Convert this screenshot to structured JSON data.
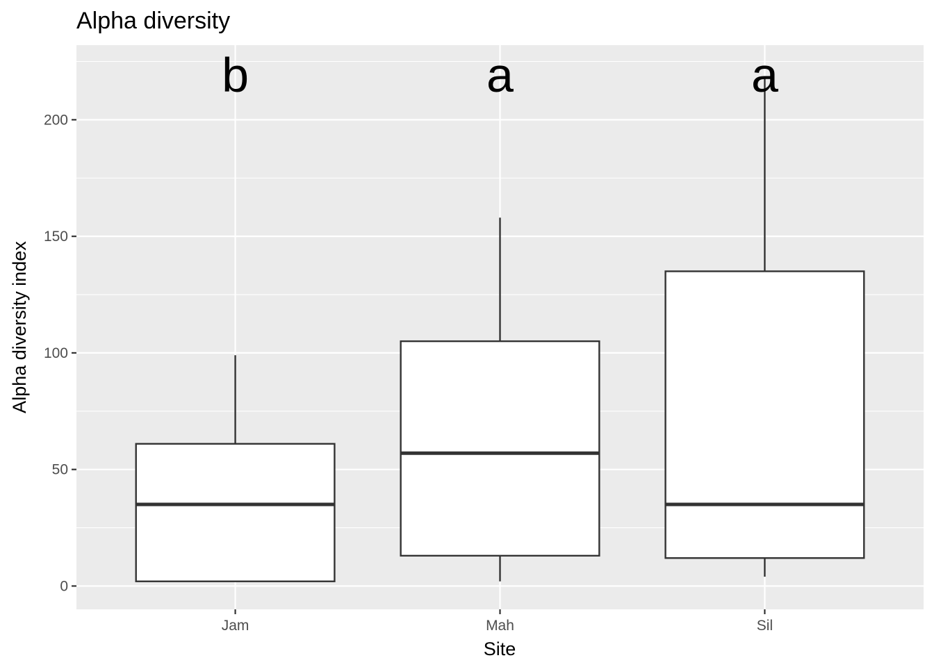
{
  "chart_data": {
    "type": "boxplot",
    "title": "Alpha diversity",
    "xlabel": "Site",
    "ylabel": "Alpha diversity index",
    "categories": [
      "Jam",
      "Mah",
      "Sil"
    ],
    "boxes": [
      {
        "category": "Jam",
        "min": 2,
        "q1": 2,
        "median": 35,
        "q3": 61,
        "max": 99,
        "letter": "b"
      },
      {
        "category": "Mah",
        "min": 2,
        "q1": 13,
        "median": 57,
        "q3": 105,
        "max": 158,
        "letter": "a"
      },
      {
        "category": "Sil",
        "min": 4,
        "q1": 12,
        "median": 35,
        "q3": 135,
        "max": 218,
        "letter": "a"
      }
    ],
    "ylim": [
      -10,
      232
    ],
    "yticks": [
      0,
      50,
      100,
      150,
      200
    ],
    "grid": true,
    "legend": "none",
    "colors": {
      "panel": "#ebebeb",
      "grid": "#ffffff",
      "box_fill": "#ffffff",
      "box_stroke": "#333333"
    }
  }
}
